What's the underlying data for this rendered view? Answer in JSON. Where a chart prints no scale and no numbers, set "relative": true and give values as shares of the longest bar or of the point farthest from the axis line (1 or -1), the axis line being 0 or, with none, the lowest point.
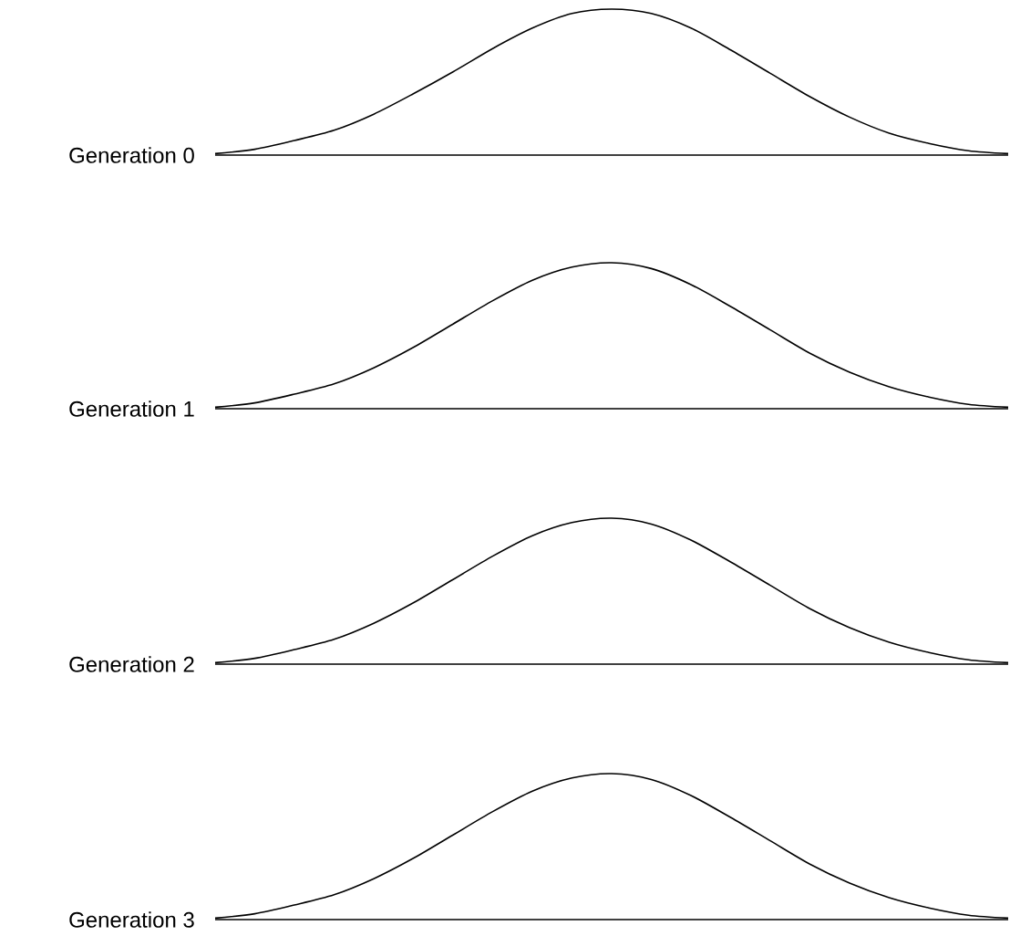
{
  "chart_data": [
    {
      "type": "line",
      "ylabel": "Generation 0",
      "relative": true,
      "color": "#000000",
      "categories": [
        null,
        null,
        null,
        null,
        null,
        null,
        null,
        null,
        null,
        null,
        null,
        null,
        null,
        null,
        null,
        null,
        null,
        null,
        null,
        null,
        null
      ],
      "values": [
        0.01,
        0.04,
        0.1,
        0.17,
        0.28,
        0.42,
        0.57,
        0.73,
        0.87,
        0.97,
        1,
        0.97,
        0.87,
        0.72,
        0.56,
        0.4,
        0.26,
        0.15,
        0.08,
        0.03,
        0.01
      ]
    },
    {
      "type": "line",
      "ylabel": "Generation 1",
      "relative": true,
      "color": "#000000",
      "categories": [
        null,
        null,
        null,
        null,
        null,
        null,
        null,
        null,
        null,
        null,
        null,
        null,
        null,
        null,
        null,
        null,
        null,
        null,
        null,
        null,
        null
      ],
      "values": [
        0.01,
        0.04,
        0.1,
        0.17,
        0.28,
        0.42,
        0.58,
        0.74,
        0.88,
        0.97,
        1,
        0.96,
        0.85,
        0.7,
        0.54,
        0.38,
        0.25,
        0.15,
        0.08,
        0.03,
        0.01
      ]
    },
    {
      "type": "line",
      "ylabel": "Generation 2",
      "relative": true,
      "color": "#000000",
      "categories": [
        null,
        null,
        null,
        null,
        null,
        null,
        null,
        null,
        null,
        null,
        null,
        null,
        null,
        null,
        null,
        null,
        null,
        null,
        null,
        null,
        null
      ],
      "values": [
        0.01,
        0.04,
        0.1,
        0.17,
        0.28,
        0.42,
        0.58,
        0.74,
        0.88,
        0.97,
        1,
        0.96,
        0.85,
        0.7,
        0.54,
        0.38,
        0.25,
        0.15,
        0.08,
        0.03,
        0.01
      ]
    },
    {
      "type": "line",
      "ylabel": "Generation 3",
      "relative": true,
      "color": "#000000",
      "categories": [
        null,
        null,
        null,
        null,
        null,
        null,
        null,
        null,
        null,
        null,
        null,
        null,
        null,
        null,
        null,
        null,
        null,
        null,
        null,
        null,
        null
      ],
      "values": [
        0.01,
        0.04,
        0.1,
        0.17,
        0.28,
        0.42,
        0.58,
        0.74,
        0.88,
        0.97,
        1,
        0.96,
        0.85,
        0.7,
        0.54,
        0.38,
        0.25,
        0.15,
        0.08,
        0.03,
        0.01
      ]
    }
  ]
}
